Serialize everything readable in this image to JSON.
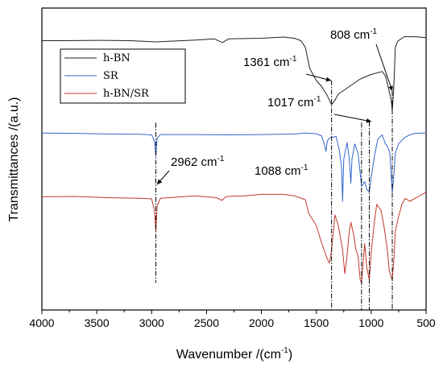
{
  "chart_data": {
    "type": "line",
    "xlabel": "Wavenumber /(cm",
    "xlabel_sup": "-1",
    "xlabel_tail": ")",
    "ylabel": "Transmittances /(a.u.)",
    "xlim": [
      4000,
      500
    ],
    "x_reversed": true,
    "ylim": [
      0,
      100
    ],
    "y_ticks_labeled": false,
    "x_ticks": [
      "4000",
      "3500",
      "3000",
      "2500",
      "2000",
      "1500",
      "1000",
      "500"
    ],
    "legend": {
      "placement": "top-left"
    },
    "series": [
      {
        "name": "h-BN",
        "color": "#222222",
        "points": [
          [
            4000,
            89.2
          ],
          [
            3800,
            89.2
          ],
          [
            3500,
            89.3
          ],
          [
            3200,
            89.2
          ],
          [
            2960,
            88.8
          ],
          [
            2600,
            89.4
          ],
          [
            2430,
            89.8
          ],
          [
            2355,
            88.6
          ],
          [
            2300,
            89.8
          ],
          [
            2000,
            90.0
          ],
          [
            1800,
            90.4
          ],
          [
            1700,
            90.0
          ],
          [
            1640,
            89.2
          ],
          [
            1600,
            87.0
          ],
          [
            1560,
            80.0
          ],
          [
            1500,
            76.0
          ],
          [
            1450,
            74.0
          ],
          [
            1400,
            71.0
          ],
          [
            1361,
            68.0
          ],
          [
            1330,
            69.5
          ],
          [
            1300,
            71.5
          ],
          [
            1200,
            74.0
          ],
          [
            1100,
            76.5
          ],
          [
            1000,
            78.0
          ],
          [
            900,
            79.0
          ],
          [
            870,
            77.5
          ],
          [
            840,
            73.0
          ],
          [
            820,
            70.0
          ],
          [
            808,
            66.0
          ],
          [
            795,
            73.0
          ],
          [
            780,
            87.0
          ],
          [
            760,
            89.0
          ],
          [
            700,
            90.5
          ],
          [
            600,
            90.5
          ],
          [
            500,
            90.2
          ]
        ]
      },
      {
        "name": "SR",
        "color": "#3366cc",
        "points": [
          [
            4000,
            58.6
          ],
          [
            3700,
            58.5
          ],
          [
            3400,
            58.3
          ],
          [
            3100,
            58.2
          ],
          [
            3000,
            58.0
          ],
          [
            2975,
            56.0
          ],
          [
            2962,
            51.0
          ],
          [
            2950,
            57.0
          ],
          [
            2920,
            58.1
          ],
          [
            2600,
            58.1
          ],
          [
            2300,
            58.0
          ],
          [
            2000,
            58.1
          ],
          [
            1700,
            58.3
          ],
          [
            1600,
            58.6
          ],
          [
            1500,
            58.4
          ],
          [
            1450,
            57.6
          ],
          [
            1420,
            54.0
          ],
          [
            1411,
            52.5
          ],
          [
            1400,
            56.0
          ],
          [
            1380,
            57.0
          ],
          [
            1320,
            57.5
          ],
          [
            1290,
            53.0
          ],
          [
            1270,
            47.0
          ],
          [
            1261,
            36.0
          ],
          [
            1250,
            50.0
          ],
          [
            1220,
            55.5
          ],
          [
            1200,
            50.0
          ],
          [
            1185,
            42.0
          ],
          [
            1175,
            50.0
          ],
          [
            1150,
            55.0
          ],
          [
            1120,
            52.0
          ],
          [
            1088,
            41.0
          ],
          [
            1060,
            42.5
          ],
          [
            1040,
            40.0
          ],
          [
            1017,
            39.0
          ],
          [
            1000,
            44.0
          ],
          [
            970,
            51.0
          ],
          [
            940,
            56.5
          ],
          [
            900,
            58.0
          ],
          [
            870,
            55.0
          ],
          [
            850,
            54.0
          ],
          [
            830,
            52.0
          ],
          [
            808,
            39.0
          ],
          [
            795,
            44.0
          ],
          [
            780,
            52.0
          ],
          [
            750,
            55.0
          ],
          [
            700,
            57.0
          ],
          [
            650,
            58.0
          ],
          [
            600,
            58.5
          ],
          [
            550,
            58.6
          ],
          [
            500,
            58.6
          ]
        ]
      },
      {
        "name": "h-BN/SR",
        "color": "#c0392b",
        "points": [
          [
            4000,
            37.5
          ],
          [
            3700,
            37.6
          ],
          [
            3400,
            37.2
          ],
          [
            3100,
            37.0
          ],
          [
            3000,
            36.8
          ],
          [
            2975,
            33.0
          ],
          [
            2962,
            26.0
          ],
          [
            2950,
            34.5
          ],
          [
            2920,
            37.0
          ],
          [
            2600,
            37.8
          ],
          [
            2410,
            37.2
          ],
          [
            2360,
            36.3
          ],
          [
            2320,
            37.6
          ],
          [
            2150,
            37.8
          ],
          [
            2000,
            38.3
          ],
          [
            1800,
            38.3
          ],
          [
            1700,
            37.8
          ],
          [
            1650,
            37.2
          ],
          [
            1600,
            36.5
          ],
          [
            1570,
            32.0
          ],
          [
            1500,
            28.0
          ],
          [
            1450,
            22.0
          ],
          [
            1400,
            17.0
          ],
          [
            1380,
            15.5
          ],
          [
            1361,
            20.0
          ],
          [
            1330,
            31.5
          ],
          [
            1300,
            28.0
          ],
          [
            1261,
            20.0
          ],
          [
            1240,
            12.0
          ],
          [
            1220,
            18.0
          ],
          [
            1200,
            26.0
          ],
          [
            1185,
            29.0
          ],
          [
            1160,
            25.0
          ],
          [
            1140,
            20.0
          ],
          [
            1120,
            18.0
          ],
          [
            1100,
            10.0
          ],
          [
            1088,
            9.0
          ],
          [
            1075,
            15.0
          ],
          [
            1060,
            22.0
          ],
          [
            1040,
            14.0
          ],
          [
            1017,
            10.0
          ],
          [
            1000,
            19.0
          ],
          [
            975,
            28.0
          ],
          [
            950,
            35.0
          ],
          [
            910,
            33.0
          ],
          [
            880,
            27.0
          ],
          [
            850,
            19.0
          ],
          [
            835,
            13.0
          ],
          [
            808,
            10.0
          ],
          [
            795,
            16.0
          ],
          [
            780,
            26.0
          ],
          [
            750,
            31.0
          ],
          [
            720,
            35.0
          ],
          [
            690,
            37.0
          ],
          [
            650,
            36.0
          ],
          [
            600,
            37.0
          ],
          [
            550,
            38.0
          ],
          [
            500,
            39.0
          ]
        ]
      }
    ],
    "annotations": [
      {
        "text": "808 cm",
        "sup": "-1",
        "x": 808,
        "line_to": 0
      },
      {
        "text": "1361 cm",
        "sup": "-1",
        "x": 1361,
        "line_to": 0
      },
      {
        "text": "1017 cm",
        "sup": "-1",
        "x": 1017,
        "line_to": 0
      },
      {
        "text": "2962 cm",
        "sup": "-1",
        "x": 2962,
        "line_to": 9
      },
      {
        "text": "1088 cm",
        "sup": "-1",
        "x": 1088,
        "line_to": 0
      }
    ]
  }
}
